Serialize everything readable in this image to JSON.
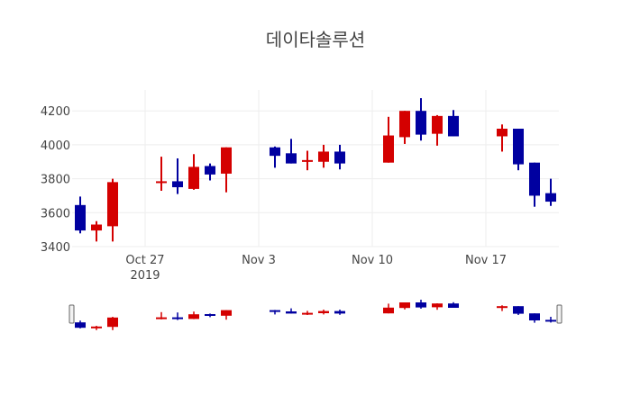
{
  "title": "데이타솔루션",
  "colors": {
    "increasing": "#d40000",
    "decreasing": "#0000a0",
    "grid": "#eeeeee",
    "text": "#444444"
  },
  "axes": {
    "y_ticks": [
      "3400",
      "3600",
      "3800",
      "4000",
      "4200"
    ],
    "x_ticks": [
      "Oct 27",
      "Nov 3",
      "Nov 10",
      "Nov 17"
    ],
    "x_year": "2019"
  },
  "chart_data": {
    "type": "candlestick",
    "title": "데이타솔루션",
    "xlabel": "",
    "ylabel": "",
    "ylim": [
      3400,
      4300
    ],
    "y_ticks": [
      3400,
      3600,
      3800,
      4000,
      4200
    ],
    "x_ticks": [
      "Oct 27 2019",
      "Nov 3",
      "Nov 10",
      "Nov 17"
    ],
    "grid": true,
    "rangeslider": true,
    "x": [
      "2019-10-23",
      "2019-10-24",
      "2019-10-25",
      "2019-10-28",
      "2019-10-29",
      "2019-10-30",
      "2019-10-31",
      "2019-11-01",
      "2019-11-04",
      "2019-11-05",
      "2019-11-06",
      "2019-11-07",
      "2019-11-08",
      "2019-11-11",
      "2019-11-12",
      "2019-11-13",
      "2019-11-14",
      "2019-11-15",
      "2019-11-18",
      "2019-11-19",
      "2019-11-20",
      "2019-11-21"
    ],
    "open": [
      3645,
      3495,
      3520,
      3775,
      3785,
      3740,
      3875,
      3830,
      3985,
      3950,
      3905,
      3900,
      3960,
      3895,
      4045,
      4200,
      4065,
      4170,
      4050,
      4095,
      3895,
      3715
    ],
    "high": [
      3695,
      3550,
      3800,
      3930,
      3920,
      3945,
      3890,
      3985,
      3990,
      4035,
      3965,
      4000,
      4000,
      4165,
      4200,
      4275,
      4175,
      4205,
      4120,
      4095,
      3895,
      3800
    ],
    "low": [
      3478,
      3430,
      3430,
      3729,
      3710,
      3735,
      3790,
      3720,
      3865,
      3890,
      3850,
      3865,
      3855,
      3895,
      4005,
      4025,
      3995,
      4050,
      3960,
      3850,
      3635,
      3640
    ],
    "close": [
      3495,
      3530,
      3780,
      3785,
      3750,
      3870,
      3825,
      3985,
      3935,
      3890,
      3910,
      3960,
      3890,
      4055,
      4200,
      4060,
      4170,
      4050,
      4095,
      3885,
      3700,
      3665
    ]
  }
}
